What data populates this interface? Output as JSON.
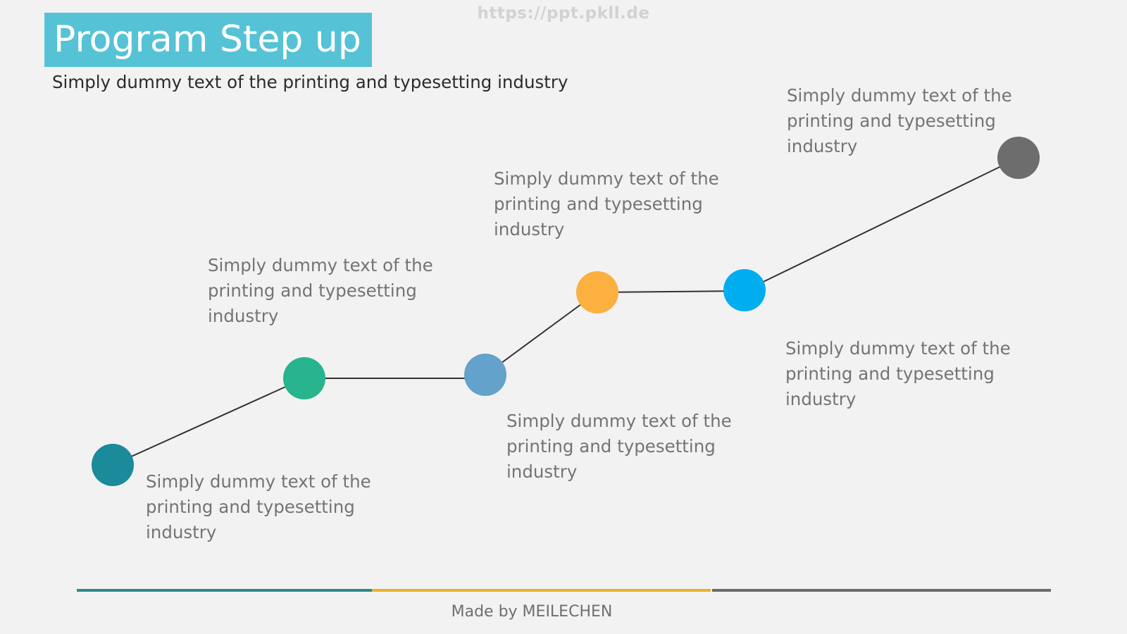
{
  "watermark": "https://ppt.pkll.de",
  "title": "Program Step up",
  "subtitle": "Simply dummy text of the printing and typesetting industry",
  "colors": {
    "title_bg": "#56c2d5",
    "connector": "#333333",
    "text": "#747474",
    "background": "#f2f2f2"
  },
  "steps": [
    {
      "color": "#1b8a9b",
      "text": "Simply dummy text of the printing and typesetting industry"
    },
    {
      "color": "#27b48e",
      "text": "Simply dummy text of the printing and typesetting industry"
    },
    {
      "color": "#62a2cb",
      "text": "Simply dummy text of the printing and typesetting industry"
    },
    {
      "color": "#fbb040",
      "text": "Simply dummy text of the printing and typesetting industry"
    },
    {
      "color": "#00aeef",
      "text": "Simply dummy text of the printing and typesetting industry"
    },
    {
      "color": "#6d6d6d",
      "text": "Simply dummy text of the printing and typesetting industry"
    }
  ],
  "bottom_bar_colors": [
    "#2c8a8a",
    "#e6b22c",
    "#6b6b6b"
  ],
  "footer": "Made by MEILECHEN"
}
